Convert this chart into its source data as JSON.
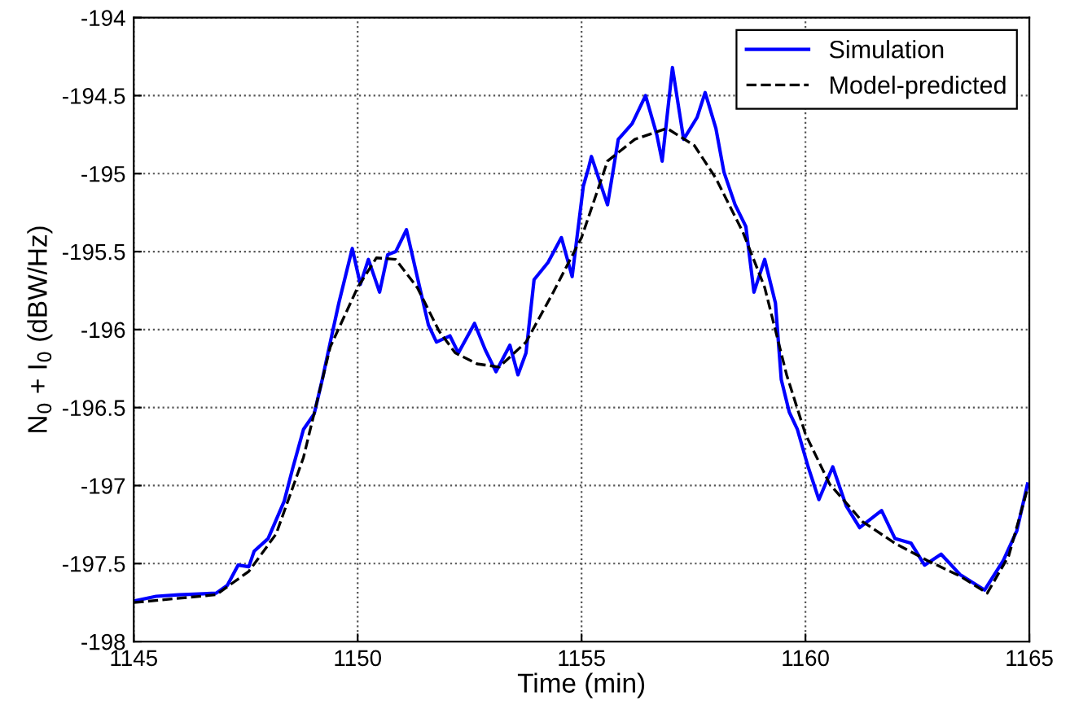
{
  "chart_data": {
    "type": "line",
    "xlabel": "Time (min)",
    "ylabel": "N$_{0}$ + I$_{0}$ (dBW/Hz)",
    "xlim": [
      1145,
      1165
    ],
    "xticks": [
      1145,
      1150,
      1155,
      1160,
      1165
    ],
    "ylim": [
      -198,
      -194
    ],
    "yticks": [
      -198,
      -197.5,
      -197,
      -196.5,
      -196,
      -195.5,
      -195,
      -194.5,
      -194
    ],
    "grid": true,
    "legend": "top right",
    "series": [
      {
        "name": "Simulation",
        "color": "#0000ff",
        "line_style": "solid",
        "x": [
          1145,
          1145.5,
          1146,
          1146.84,
          1147.09,
          1147.33,
          1147.57,
          1147.69,
          1148.0,
          1148.18,
          1148.36,
          1148.54,
          1148.79,
          1149.03,
          1149.21,
          1149.39,
          1149.58,
          1149.76,
          1149.88,
          1150.06,
          1150.24,
          1150.49,
          1150.67,
          1150.85,
          1151.09,
          1151.33,
          1151.58,
          1151.76,
          1152.06,
          1152.25,
          1152.61,
          1152.85,
          1153.09,
          1153.4,
          1153.58,
          1153.76,
          1153.94,
          1154.25,
          1154.55,
          1154.79,
          1155.04,
          1155.16,
          1155.22,
          1155.58,
          1155.82,
          1156.13,
          1156.43,
          1156.68,
          1156.8,
          1157.03,
          1157.28,
          1157.58,
          1157.76,
          1158.0,
          1158.18,
          1158.43,
          1158.67,
          1158.85,
          1159.09,
          1159.33,
          1159.46,
          1159.64,
          1159.82,
          1160.06,
          1160.3,
          1160.61,
          1160.91,
          1161.21,
          1161.7,
          1162.0,
          1162.36,
          1162.66,
          1163.03,
          1163.45,
          1164.0,
          1164.42,
          1164.72,
          1164.96
        ],
        "values": [
          -197.74,
          -197.71,
          -197.7,
          -197.69,
          -197.64,
          -197.51,
          -197.52,
          -197.42,
          -197.34,
          -197.22,
          -197.1,
          -196.9,
          -196.64,
          -196.54,
          -196.32,
          -196.08,
          -195.83,
          -195.62,
          -195.48,
          -195.71,
          -195.55,
          -195.76,
          -195.52,
          -195.5,
          -195.36,
          -195.66,
          -195.97,
          -196.08,
          -196.04,
          -196.15,
          -195.96,
          -196.13,
          -196.27,
          -196.1,
          -196.29,
          -196.15,
          -195.68,
          -195.57,
          -195.41,
          -195.66,
          -195.08,
          -194.96,
          -194.89,
          -195.2,
          -194.78,
          -194.68,
          -194.5,
          -194.75,
          -194.92,
          -194.32,
          -194.78,
          -194.64,
          -194.48,
          -194.71,
          -194.99,
          -195.2,
          -195.34,
          -195.76,
          -195.55,
          -195.83,
          -196.32,
          -196.53,
          -196.64,
          -196.88,
          -197.09,
          -196.88,
          -197.13,
          -197.27,
          -197.16,
          -197.34,
          -197.37,
          -197.51,
          -197.44,
          -197.57,
          -197.67,
          -197.48,
          -197.29,
          -196.99
        ]
      },
      {
        "name": "Model-predicted",
        "color": "#000000",
        "line_style": "dashed",
        "x": [
          1145,
          1146.84,
          1147.57,
          1148.18,
          1148.79,
          1149.39,
          1150,
          1150.42,
          1150.85,
          1151.33,
          1151.82,
          1152.18,
          1152.67,
          1153.16,
          1153.76,
          1154.37,
          1155,
          1155.58,
          1156.19,
          1156.91,
          1157.52,
          1158.0,
          1158.61,
          1159.09,
          1159.58,
          1160.0,
          1160.54,
          1161.27,
          1162.0,
          1162.72,
          1163.45,
          1164.06,
          1164.54,
          1164.96
        ],
        "values": [
          -197.75,
          -197.7,
          -197.55,
          -197.31,
          -196.82,
          -196.11,
          -195.73,
          -195.54,
          -195.55,
          -195.73,
          -196.01,
          -196.15,
          -196.22,
          -196.24,
          -196.08,
          -195.76,
          -195.41,
          -194.92,
          -194.78,
          -194.71,
          -194.82,
          -195.03,
          -195.38,
          -195.73,
          -196.29,
          -196.67,
          -196.99,
          -197.23,
          -197.37,
          -197.48,
          -197.58,
          -197.69,
          -197.45,
          -197.02
        ]
      }
    ]
  }
}
